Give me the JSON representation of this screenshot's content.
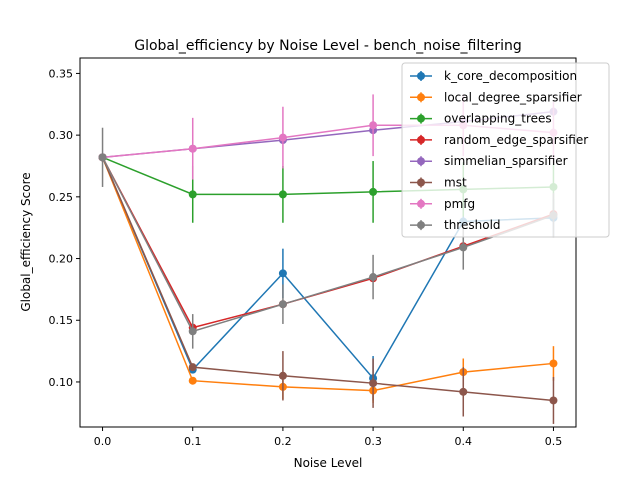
{
  "chart_data": {
    "type": "line",
    "title": "Global_efficiency by Noise Level - bench_noise_filtering",
    "xlabel": "Noise Level",
    "ylabel": "Global_efficiency Score",
    "x": [
      0.0,
      0.1,
      0.2,
      0.3,
      0.4,
      0.5
    ],
    "x_ticks": [
      "0.0",
      "0.1",
      "0.2",
      "0.3",
      "0.4",
      "0.5"
    ],
    "y_ticks": [
      "0.10",
      "0.15",
      "0.20",
      "0.25",
      "0.30",
      "0.35"
    ],
    "y_tick_values": [
      0.1,
      0.15,
      0.2,
      0.25,
      0.3,
      0.35
    ],
    "xlim": [
      -0.025,
      0.525
    ],
    "ylim": [
      0.0635,
      0.3625
    ],
    "grid": false,
    "legend_position": "top-right",
    "series": [
      {
        "name": "k_core_decomposition",
        "color": "#1f77b4",
        "values": [
          0.282,
          0.11,
          0.188,
          0.103,
          0.23,
          0.233
        ],
        "errors": [
          0.0,
          0.0,
          0.02,
          0.018,
          0.015,
          0.015
        ]
      },
      {
        "name": "local_degree_sparsifier",
        "color": "#ff7f0e",
        "values": [
          0.282,
          0.101,
          0.096,
          0.093,
          0.108,
          0.115
        ],
        "errors": [
          0.0,
          0.0,
          0.01,
          0.01,
          0.011,
          0.014
        ]
      },
      {
        "name": "overlapping_trees",
        "color": "#2ca02c",
        "values": [
          0.282,
          0.252,
          0.252,
          0.254,
          0.256,
          0.258
        ],
        "errors": [
          0.0,
          0.023,
          0.023,
          0.025,
          0.022,
          0.022
        ]
      },
      {
        "name": "random_edge_sparsifier",
        "color": "#d62728",
        "values": [
          0.282,
          0.144,
          0.163,
          0.184,
          0.21,
          0.236
        ],
        "errors": [
          0.0,
          0.0,
          0.0,
          0.0,
          0.0,
          0.0
        ]
      },
      {
        "name": "simmelian_sparsifier",
        "color": "#9467bd",
        "values": [
          0.282,
          0.289,
          0.296,
          0.304,
          0.311,
          0.319
        ],
        "errors": [
          0.0,
          0.0,
          0.0,
          0.0,
          0.0,
          0.0
        ]
      },
      {
        "name": "mst",
        "color": "#8c564b",
        "values": [
          0.282,
          0.112,
          0.105,
          0.099,
          0.092,
          0.085
        ],
        "errors": [
          0.0,
          0.0,
          0.02,
          0.02,
          0.02,
          0.019
        ]
      },
      {
        "name": "pmfg",
        "color": "#e377c2",
        "values": [
          0.282,
          0.289,
          0.298,
          0.308,
          0.308,
          0.302
        ],
        "errors": [
          0.0,
          0.025,
          0.025,
          0.025,
          0.025,
          0.025
        ]
      },
      {
        "name": "threshold",
        "color": "#7f7f7f",
        "values": [
          0.282,
          0.141,
          0.163,
          0.185,
          0.209,
          0.235
        ],
        "errors": [
          0.024,
          0.014,
          0.016,
          0.018,
          0.018,
          0.018
        ]
      }
    ]
  }
}
